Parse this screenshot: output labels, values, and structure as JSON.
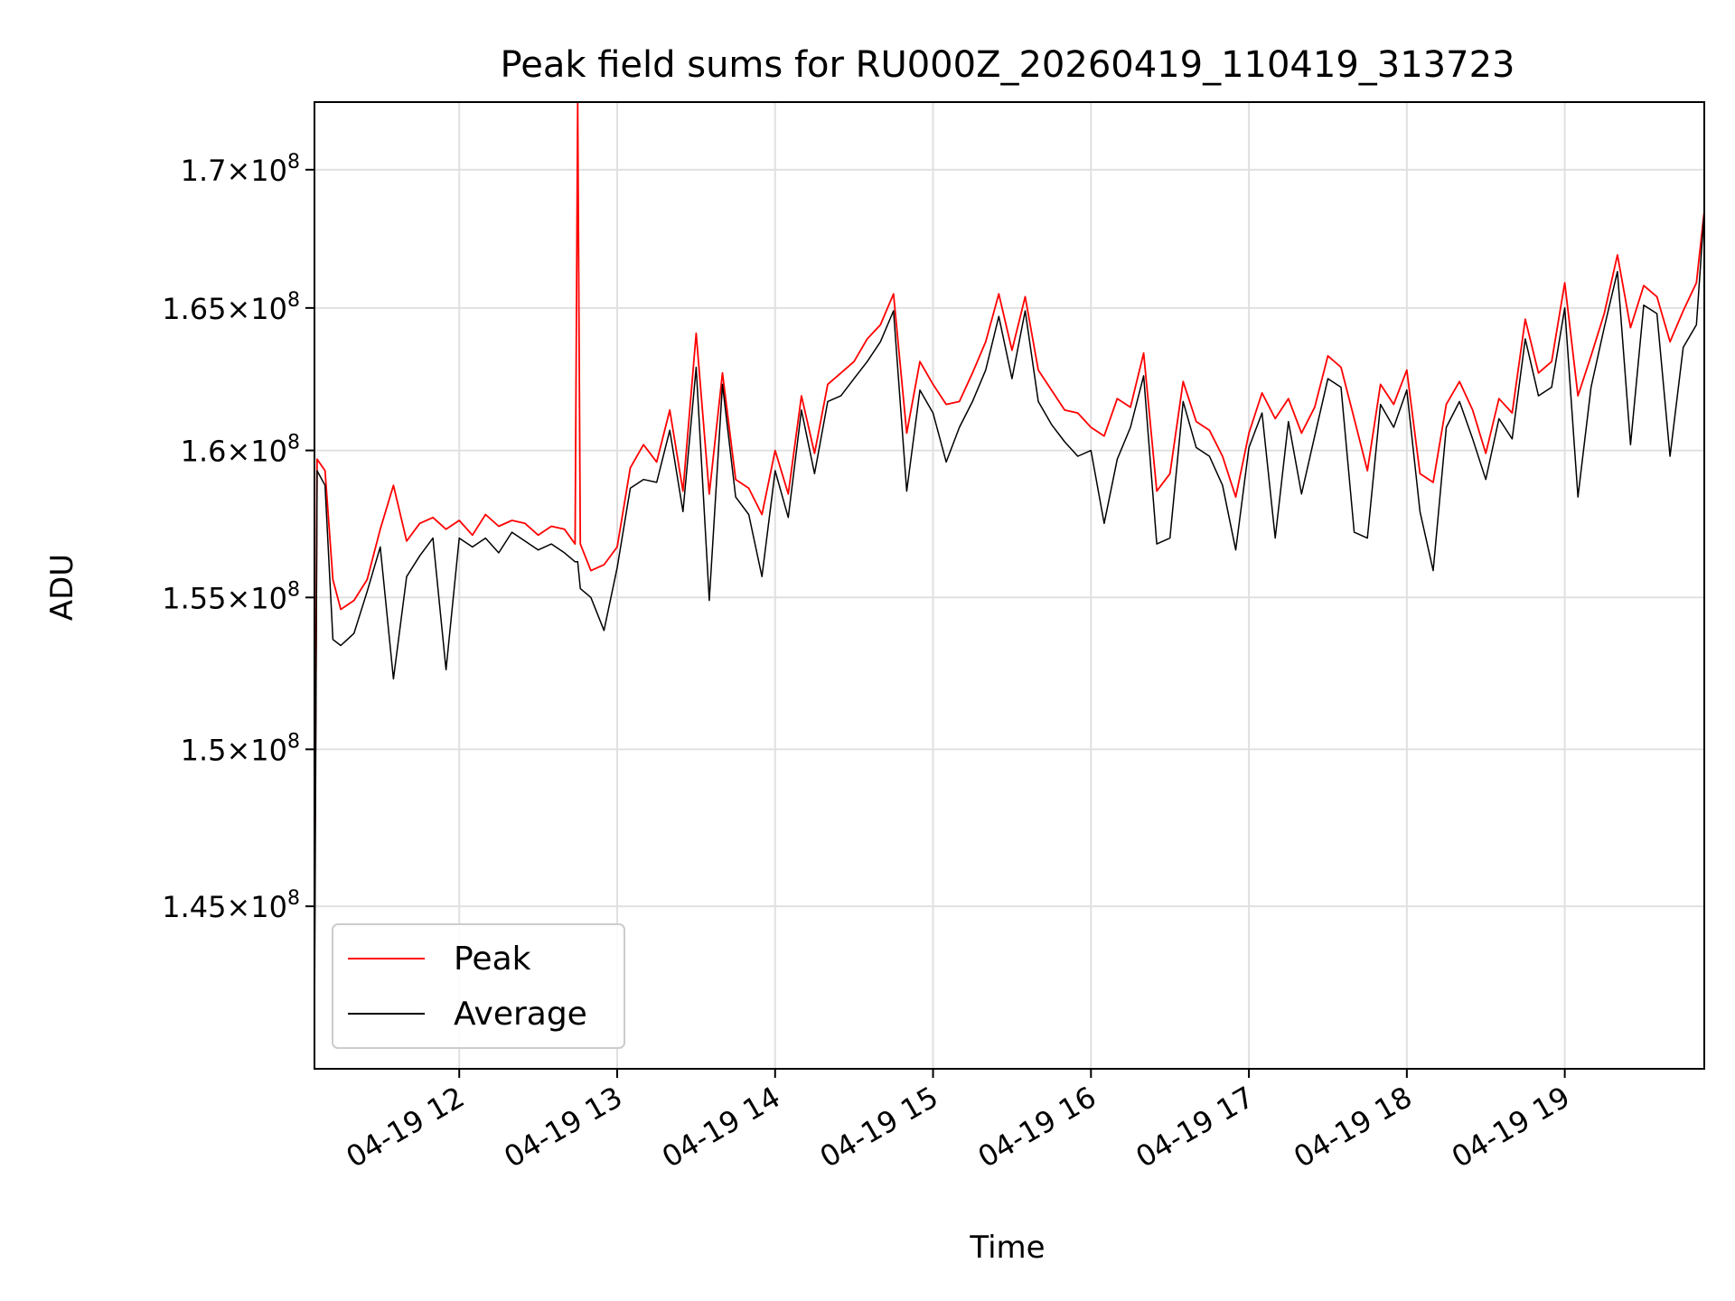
{
  "chart_data": {
    "type": "line",
    "title": "Peak field sums for RU000Z_20260419_110419_313723",
    "xlabel": "Time",
    "ylabel": "ADU",
    "yscale": "log",
    "xlim": [
      "2026-04-19 11:05",
      "2026-04-19 19:53"
    ],
    "ylim": [
      140000000,
      172500000
    ],
    "grid": true,
    "legend_position": "lower-left",
    "colors": {
      "peak": "#ff0000",
      "average": "#000000",
      "grid": "#e0e0e0",
      "axes": "#000000"
    },
    "x_ticks": [
      {
        "value": "2026-04-19 12:00",
        "label": "04-19 12"
      },
      {
        "value": "2026-04-19 13:00",
        "label": "04-19 13"
      },
      {
        "value": "2026-04-19 14:00",
        "label": "04-19 14"
      },
      {
        "value": "2026-04-19 15:00",
        "label": "04-19 15"
      },
      {
        "value": "2026-04-19 16:00",
        "label": "04-19 16"
      },
      {
        "value": "2026-04-19 17:00",
        "label": "04-19 17"
      },
      {
        "value": "2026-04-19 18:00",
        "label": "04-19 18"
      },
      {
        "value": "2026-04-19 19:00",
        "label": "04-19 19"
      }
    ],
    "y_ticks": [
      {
        "value": 145000000,
        "mantissa": "1.45",
        "exponent": "8"
      },
      {
        "value": 150000000,
        "mantissa": "1.5",
        "exponent": "8"
      },
      {
        "value": 155000000,
        "mantissa": "1.55",
        "exponent": "8"
      },
      {
        "value": 160000000,
        "mantissa": "1.6",
        "exponent": "8"
      },
      {
        "value": 165000000,
        "mantissa": "1.65",
        "exponent": "8"
      },
      {
        "value": 170000000,
        "mantissa": "1.7",
        "exponent": "8"
      }
    ],
    "series": [
      {
        "name": "Peak",
        "color": "#ff0000",
        "x": [
          "2026-04-19 11:05",
          "2026-04-19 11:06",
          "2026-04-19 11:09",
          "2026-04-19 11:12",
          "2026-04-19 11:15",
          "2026-04-19 11:20",
          "2026-04-19 11:25",
          "2026-04-19 11:30",
          "2026-04-19 11:35",
          "2026-04-19 11:40",
          "2026-04-19 11:45",
          "2026-04-19 11:50",
          "2026-04-19 11:55",
          "2026-04-19 12:00",
          "2026-04-19 12:05",
          "2026-04-19 12:10",
          "2026-04-19 12:15",
          "2026-04-19 12:20",
          "2026-04-19 12:25",
          "2026-04-19 12:30",
          "2026-04-19 12:35",
          "2026-04-19 12:40",
          "2026-04-19 12:44",
          "2026-04-19 12:45",
          "2026-04-19 12:46",
          "2026-04-19 12:50",
          "2026-04-19 12:55",
          "2026-04-19 13:00",
          "2026-04-19 13:05",
          "2026-04-19 13:10",
          "2026-04-19 13:15",
          "2026-04-19 13:20",
          "2026-04-19 13:25",
          "2026-04-19 13:30",
          "2026-04-19 13:35",
          "2026-04-19 13:40",
          "2026-04-19 13:45",
          "2026-04-19 13:50",
          "2026-04-19 13:55",
          "2026-04-19 14:00",
          "2026-04-19 14:05",
          "2026-04-19 14:10",
          "2026-04-19 14:15",
          "2026-04-19 14:20",
          "2026-04-19 14:25",
          "2026-04-19 14:30",
          "2026-04-19 14:35",
          "2026-04-19 14:40",
          "2026-04-19 14:45",
          "2026-04-19 14:50",
          "2026-04-19 14:55",
          "2026-04-19 15:00",
          "2026-04-19 15:05",
          "2026-04-19 15:10",
          "2026-04-19 15:15",
          "2026-04-19 15:20",
          "2026-04-19 15:25",
          "2026-04-19 15:30",
          "2026-04-19 15:35",
          "2026-04-19 15:40",
          "2026-04-19 15:45",
          "2026-04-19 15:50",
          "2026-04-19 15:55",
          "2026-04-19 16:00",
          "2026-04-19 16:05",
          "2026-04-19 16:10",
          "2026-04-19 16:15",
          "2026-04-19 16:20",
          "2026-04-19 16:25",
          "2026-04-19 16:30",
          "2026-04-19 16:35",
          "2026-04-19 16:40",
          "2026-04-19 16:45",
          "2026-04-19 16:50",
          "2026-04-19 16:55",
          "2026-04-19 17:00",
          "2026-04-19 17:05",
          "2026-04-19 17:10",
          "2026-04-19 17:15",
          "2026-04-19 17:20",
          "2026-04-19 17:25",
          "2026-04-19 17:30",
          "2026-04-19 17:35",
          "2026-04-19 17:40",
          "2026-04-19 17:45",
          "2026-04-19 17:50",
          "2026-04-19 17:55",
          "2026-04-19 18:00",
          "2026-04-19 18:05",
          "2026-04-19 18:10",
          "2026-04-19 18:15",
          "2026-04-19 18:20",
          "2026-04-19 18:25",
          "2026-04-19 18:30",
          "2026-04-19 18:35",
          "2026-04-19 18:40",
          "2026-04-19 18:45",
          "2026-04-19 18:50",
          "2026-04-19 18:55",
          "2026-04-19 19:00",
          "2026-04-19 19:05",
          "2026-04-19 19:10",
          "2026-04-19 19:15",
          "2026-04-19 19:20",
          "2026-04-19 19:25",
          "2026-04-19 19:30",
          "2026-04-19 19:35",
          "2026-04-19 19:40",
          "2026-04-19 19:45",
          "2026-04-19 19:50",
          "2026-04-19 19:53"
        ],
        "values": [
          143900000,
          159700000,
          159300000,
          155600000,
          154600000,
          154900000,
          155600000,
          157300000,
          158800000,
          156900000,
          157500000,
          157700000,
          157300000,
          157600000,
          157100000,
          157800000,
          157400000,
          157600000,
          157500000,
          157100000,
          157400000,
          157300000,
          156800000,
          172500000,
          156800000,
          155900000,
          156100000,
          156700000,
          159400000,
          160200000,
          159600000,
          161400000,
          158600000,
          164100000,
          158500000,
          162700000,
          159000000,
          158700000,
          157800000,
          160000000,
          158500000,
          161900000,
          159900000,
          162300000,
          162700000,
          163100000,
          163900000,
          164400000,
          165500000,
          160600000,
          163100000,
          162300000,
          161600000,
          161700000,
          162700000,
          163800000,
          165500000,
          163500000,
          165400000,
          162800000,
          162100000,
          161400000,
          161300000,
          160800000,
          160500000,
          161800000,
          161500000,
          163400000,
          158600000,
          159200000,
          162400000,
          161000000,
          160700000,
          159800000,
          158400000,
          160600000,
          162000000,
          161100000,
          161800000,
          160600000,
          161500000,
          163300000,
          162900000,
          161100000,
          159300000,
          162300000,
          161600000,
          162800000,
          159200000,
          158900000,
          161600000,
          162400000,
          161400000,
          159900000,
          161800000,
          161300000,
          164600000,
          162700000,
          163100000,
          165900000,
          161900000,
          163300000,
          164800000,
          166900000,
          164300000,
          165800000,
          165400000,
          163800000,
          164900000,
          165900000,
          168500000
        ]
      },
      {
        "name": "Average",
        "color": "#000000",
        "x": [
          "2026-04-19 11:05",
          "2026-04-19 11:06",
          "2026-04-19 11:09",
          "2026-04-19 11:12",
          "2026-04-19 11:15",
          "2026-04-19 11:20",
          "2026-04-19 11:25",
          "2026-04-19 11:30",
          "2026-04-19 11:35",
          "2026-04-19 11:40",
          "2026-04-19 11:45",
          "2026-04-19 11:50",
          "2026-04-19 11:55",
          "2026-04-19 12:00",
          "2026-04-19 12:05",
          "2026-04-19 12:10",
          "2026-04-19 12:15",
          "2026-04-19 12:20",
          "2026-04-19 12:25",
          "2026-04-19 12:30",
          "2026-04-19 12:35",
          "2026-04-19 12:40",
          "2026-04-19 12:44",
          "2026-04-19 12:45",
          "2026-04-19 12:46",
          "2026-04-19 12:50",
          "2026-04-19 12:55",
          "2026-04-19 13:00",
          "2026-04-19 13:05",
          "2026-04-19 13:10",
          "2026-04-19 13:15",
          "2026-04-19 13:20",
          "2026-04-19 13:25",
          "2026-04-19 13:30",
          "2026-04-19 13:35",
          "2026-04-19 13:40",
          "2026-04-19 13:45",
          "2026-04-19 13:50",
          "2026-04-19 13:55",
          "2026-04-19 14:00",
          "2026-04-19 14:05",
          "2026-04-19 14:10",
          "2026-04-19 14:15",
          "2026-04-19 14:20",
          "2026-04-19 14:25",
          "2026-04-19 14:30",
          "2026-04-19 14:35",
          "2026-04-19 14:40",
          "2026-04-19 14:45",
          "2026-04-19 14:50",
          "2026-04-19 14:55",
          "2026-04-19 15:00",
          "2026-04-19 15:05",
          "2026-04-19 15:10",
          "2026-04-19 15:15",
          "2026-04-19 15:20",
          "2026-04-19 15:25",
          "2026-04-19 15:30",
          "2026-04-19 15:35",
          "2026-04-19 15:40",
          "2026-04-19 15:45",
          "2026-04-19 15:50",
          "2026-04-19 15:55",
          "2026-04-19 16:00",
          "2026-04-19 16:05",
          "2026-04-19 16:10",
          "2026-04-19 16:15",
          "2026-04-19 16:20",
          "2026-04-19 16:25",
          "2026-04-19 16:30",
          "2026-04-19 16:35",
          "2026-04-19 16:40",
          "2026-04-19 16:45",
          "2026-04-19 16:50",
          "2026-04-19 16:55",
          "2026-04-19 17:00",
          "2026-04-19 17:05",
          "2026-04-19 17:10",
          "2026-04-19 17:15",
          "2026-04-19 17:20",
          "2026-04-19 17:25",
          "2026-04-19 17:30",
          "2026-04-19 17:35",
          "2026-04-19 17:40",
          "2026-04-19 17:45",
          "2026-04-19 17:50",
          "2026-04-19 17:55",
          "2026-04-19 18:00",
          "2026-04-19 18:05",
          "2026-04-19 18:10",
          "2026-04-19 18:15",
          "2026-04-19 18:20",
          "2026-04-19 18:25",
          "2026-04-19 18:30",
          "2026-04-19 18:35",
          "2026-04-19 18:40",
          "2026-04-19 18:45",
          "2026-04-19 18:50",
          "2026-04-19 18:55",
          "2026-04-19 19:00",
          "2026-04-19 19:05",
          "2026-04-19 19:10",
          "2026-04-19 19:15",
          "2026-04-19 19:20",
          "2026-04-19 19:25",
          "2026-04-19 19:30",
          "2026-04-19 19:35",
          "2026-04-19 19:40",
          "2026-04-19 19:45",
          "2026-04-19 19:50",
          "2026-04-19 19:53"
        ],
        "values": [
          141100000,
          159300000,
          158800000,
          153600000,
          153400000,
          153800000,
          155200000,
          156700000,
          152300000,
          155700000,
          156400000,
          157000000,
          152600000,
          157000000,
          156700000,
          157000000,
          156500000,
          157200000,
          156900000,
          156600000,
          156800000,
          156500000,
          156200000,
          156200000,
          155300000,
          155000000,
          153900000,
          156000000,
          158700000,
          159000000,
          158900000,
          160700000,
          157900000,
          162900000,
          154900000,
          162300000,
          158400000,
          157800000,
          155700000,
          159300000,
          157700000,
          161400000,
          159200000,
          161700000,
          161900000,
          162500000,
          163100000,
          163800000,
          164900000,
          158600000,
          162100000,
          161300000,
          159600000,
          160800000,
          161700000,
          162800000,
          164700000,
          162500000,
          164900000,
          161700000,
          160900000,
          160300000,
          159800000,
          160000000,
          157500000,
          159700000,
          160800000,
          162600000,
          156800000,
          157000000,
          161700000,
          160100000,
          159800000,
          158800000,
          156600000,
          160100000,
          161300000,
          157000000,
          161000000,
          158500000,
          160500000,
          162500000,
          162200000,
          157200000,
          157000000,
          161600000,
          160800000,
          162100000,
          157900000,
          155900000,
          160800000,
          161700000,
          160400000,
          159000000,
          161100000,
          160400000,
          163900000,
          161900000,
          162200000,
          165000000,
          158400000,
          162200000,
          164300000,
          166300000,
          160200000,
          165100000,
          164800000,
          159800000,
          163600000,
          164400000,
          168500000
        ]
      }
    ]
  }
}
